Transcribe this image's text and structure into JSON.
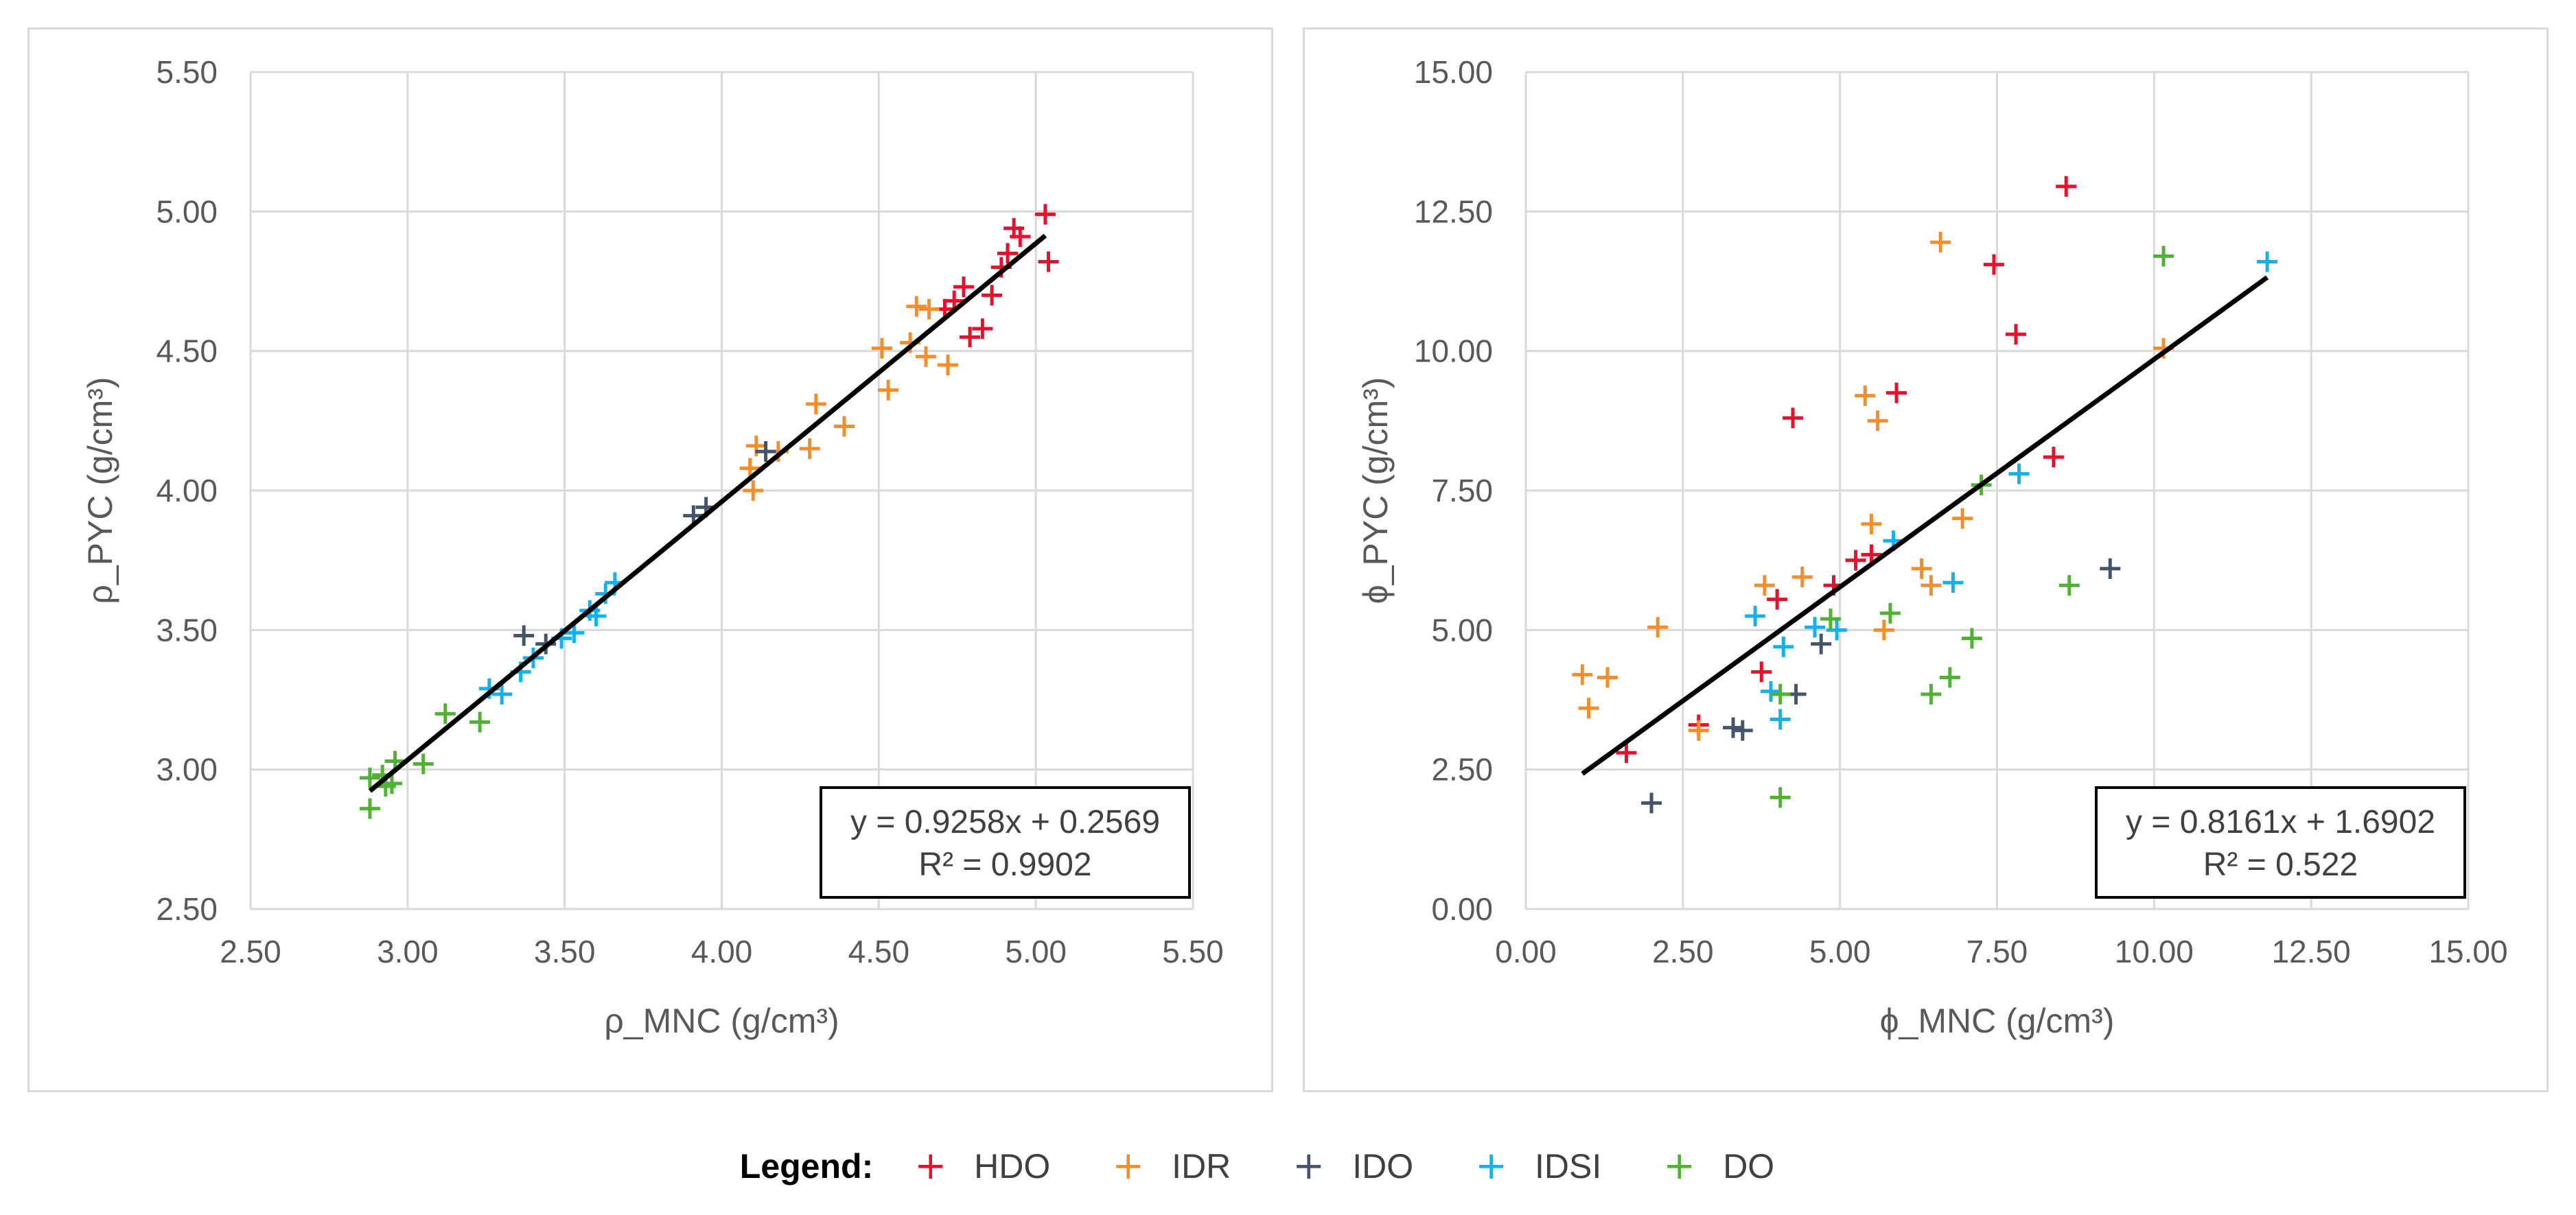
{
  "legend": {
    "title": "Legend:",
    "entries": [
      {
        "label": "HDO",
        "color": "#e8112d"
      },
      {
        "label": "IDR",
        "color": "#f28e2b"
      },
      {
        "label": "IDO",
        "color": "#44546a"
      },
      {
        "label": "IDSI",
        "color": "#16b0ea"
      },
      {
        "label": "DO",
        "color": "#4fb233"
      }
    ]
  },
  "chart_data": [
    {
      "type": "scatter",
      "title": "",
      "xlabel": "ρ_MNC (g/cm³)",
      "ylabel": "ρ_PYC (g/cm³)",
      "xlim": [
        2.5,
        5.5
      ],
      "ylim": [
        2.5,
        5.5
      ],
      "xticks": [
        "2.50",
        "3.00",
        "3.50",
        "4.00",
        "4.50",
        "5.00",
        "5.50"
      ],
      "yticks": [
        "2.50",
        "3.00",
        "3.50",
        "4.00",
        "4.50",
        "5.00",
        "5.50"
      ],
      "grid": true,
      "trendline": {
        "slope": 0.9258,
        "intercept": 0.2569,
        "x_range": [
          2.88,
          5.03
        ]
      },
      "equation": "y = 0.9258x + 0.2569",
      "r2": "R² = 0.9902",
      "series": [
        {
          "name": "HDO",
          "points": [
            [
              4.93,
              4.94
            ],
            [
              5.03,
              4.99
            ],
            [
              4.95,
              4.91
            ],
            [
              5.04,
              4.82
            ],
            [
              4.91,
              4.85
            ],
            [
              4.77,
              4.73
            ],
            [
              4.74,
              4.68
            ],
            [
              4.71,
              4.65
            ],
            [
              4.86,
              4.7
            ],
            [
              4.83,
              4.58
            ],
            [
              4.79,
              4.55
            ],
            [
              4.89,
              4.8
            ]
          ]
        },
        {
          "name": "IDR",
          "points": [
            [
              4.62,
              4.66
            ],
            [
              4.66,
              4.65
            ],
            [
              4.51,
              4.51
            ],
            [
              4.6,
              4.53
            ],
            [
              4.65,
              4.48
            ],
            [
              4.72,
              4.45
            ],
            [
              4.53,
              4.36
            ],
            [
              4.3,
              4.31
            ],
            [
              4.11,
              4.16
            ],
            [
              4.18,
              4.14
            ],
            [
              4.09,
              4.08
            ],
            [
              4.28,
              4.15
            ],
            [
              4.39,
              4.23
            ],
            [
              4.1,
              4.0
            ]
          ]
        },
        {
          "name": "IDO",
          "points": [
            [
              3.95,
              3.94
            ],
            [
              3.91,
              3.91
            ],
            [
              4.14,
              4.14
            ],
            [
              3.37,
              3.48
            ],
            [
              3.44,
              3.45
            ]
          ]
        },
        {
          "name": "IDSI",
          "points": [
            [
              3.66,
              3.67
            ],
            [
              3.63,
              3.63
            ],
            [
              3.58,
              3.57
            ],
            [
              3.6,
              3.55
            ],
            [
              3.53,
              3.49
            ],
            [
              3.49,
              3.47
            ],
            [
              3.4,
              3.4
            ],
            [
              3.36,
              3.35
            ],
            [
              3.3,
              3.27
            ],
            [
              3.26,
              3.29
            ]
          ]
        },
        {
          "name": "DO",
          "points": [
            [
              3.12,
              3.2
            ],
            [
              3.23,
              3.17
            ],
            [
              3.05,
              3.02
            ],
            [
              2.96,
              3.03
            ],
            [
              2.95,
              2.95
            ],
            [
              2.92,
              2.98
            ],
            [
              2.88,
              2.97
            ],
            [
              2.93,
              2.94
            ],
            [
              2.88,
              2.86
            ]
          ]
        }
      ]
    },
    {
      "type": "scatter",
      "title": "",
      "xlabel": "ϕ_MNC (g/cm³)",
      "ylabel": "ϕ_PYC (g/cm³)",
      "xlim": [
        0,
        15
      ],
      "ylim": [
        0,
        15
      ],
      "xticks": [
        "0.00",
        "2.50",
        "5.00",
        "7.50",
        "10.00",
        "12.50",
        "15.00"
      ],
      "yticks": [
        "0.00",
        "2.50",
        "5.00",
        "7.50",
        "10.00",
        "12.50",
        "15.00"
      ],
      "grid": true,
      "trendline": {
        "slope": 0.8161,
        "intercept": 1.6902,
        "x_range": [
          0.9,
          11.8
        ]
      },
      "equation": "y = 0.8161x + 1.6902",
      "r2": "R² = 0.522",
      "series": [
        {
          "name": "HDO",
          "points": [
            [
              8.6,
              12.95
            ],
            [
              7.45,
              11.55
            ],
            [
              7.8,
              10.3
            ],
            [
              5.9,
              9.25
            ],
            [
              4.25,
              8.8
            ],
            [
              8.4,
              8.1
            ],
            [
              5.5,
              6.35
            ],
            [
              5.25,
              6.25
            ],
            [
              4.9,
              5.8
            ],
            [
              4.0,
              5.55
            ],
            [
              3.75,
              4.25
            ],
            [
              1.6,
              2.8
            ],
            [
              2.75,
              3.3
            ]
          ]
        },
        {
          "name": "IDR",
          "points": [
            [
              6.6,
              11.95
            ],
            [
              10.15,
              10.05
            ],
            [
              5.4,
              9.2
            ],
            [
              5.6,
              8.75
            ],
            [
              5.5,
              6.9
            ],
            [
              6.95,
              7.0
            ],
            [
              3.8,
              5.8
            ],
            [
              4.4,
              5.95
            ],
            [
              6.3,
              6.1
            ],
            [
              6.45,
              5.8
            ],
            [
              2.1,
              5.05
            ],
            [
              5.7,
              5.0
            ],
            [
              0.9,
              4.2
            ],
            [
              1.3,
              4.15
            ],
            [
              1.0,
              3.6
            ],
            [
              2.75,
              3.2
            ]
          ]
        },
        {
          "name": "IDO",
          "points": [
            [
              9.3,
              6.1
            ],
            [
              4.7,
              4.75
            ],
            [
              4.3,
              3.85
            ],
            [
              3.3,
              3.25
            ],
            [
              3.45,
              3.2
            ],
            [
              2.0,
              1.9
            ]
          ]
        },
        {
          "name": "IDSI",
          "points": [
            [
              11.8,
              11.6
            ],
            [
              7.85,
              7.8
            ],
            [
              5.85,
              6.6
            ],
            [
              6.8,
              5.85
            ],
            [
              3.65,
              5.25
            ],
            [
              4.6,
              5.05
            ],
            [
              4.95,
              5.0
            ],
            [
              4.1,
              4.7
            ],
            [
              3.9,
              3.9
            ],
            [
              4.05,
              3.4
            ]
          ]
        },
        {
          "name": "DO",
          "points": [
            [
              10.15,
              11.7
            ],
            [
              7.25,
              7.6
            ],
            [
              5.8,
              5.3
            ],
            [
              4.85,
              5.2
            ],
            [
              7.1,
              4.85
            ],
            [
              8.65,
              5.8
            ],
            [
              6.75,
              4.15
            ],
            [
              6.45,
              3.85
            ],
            [
              4.05,
              3.85
            ],
            [
              4.05,
              2.0
            ]
          ]
        }
      ]
    }
  ]
}
